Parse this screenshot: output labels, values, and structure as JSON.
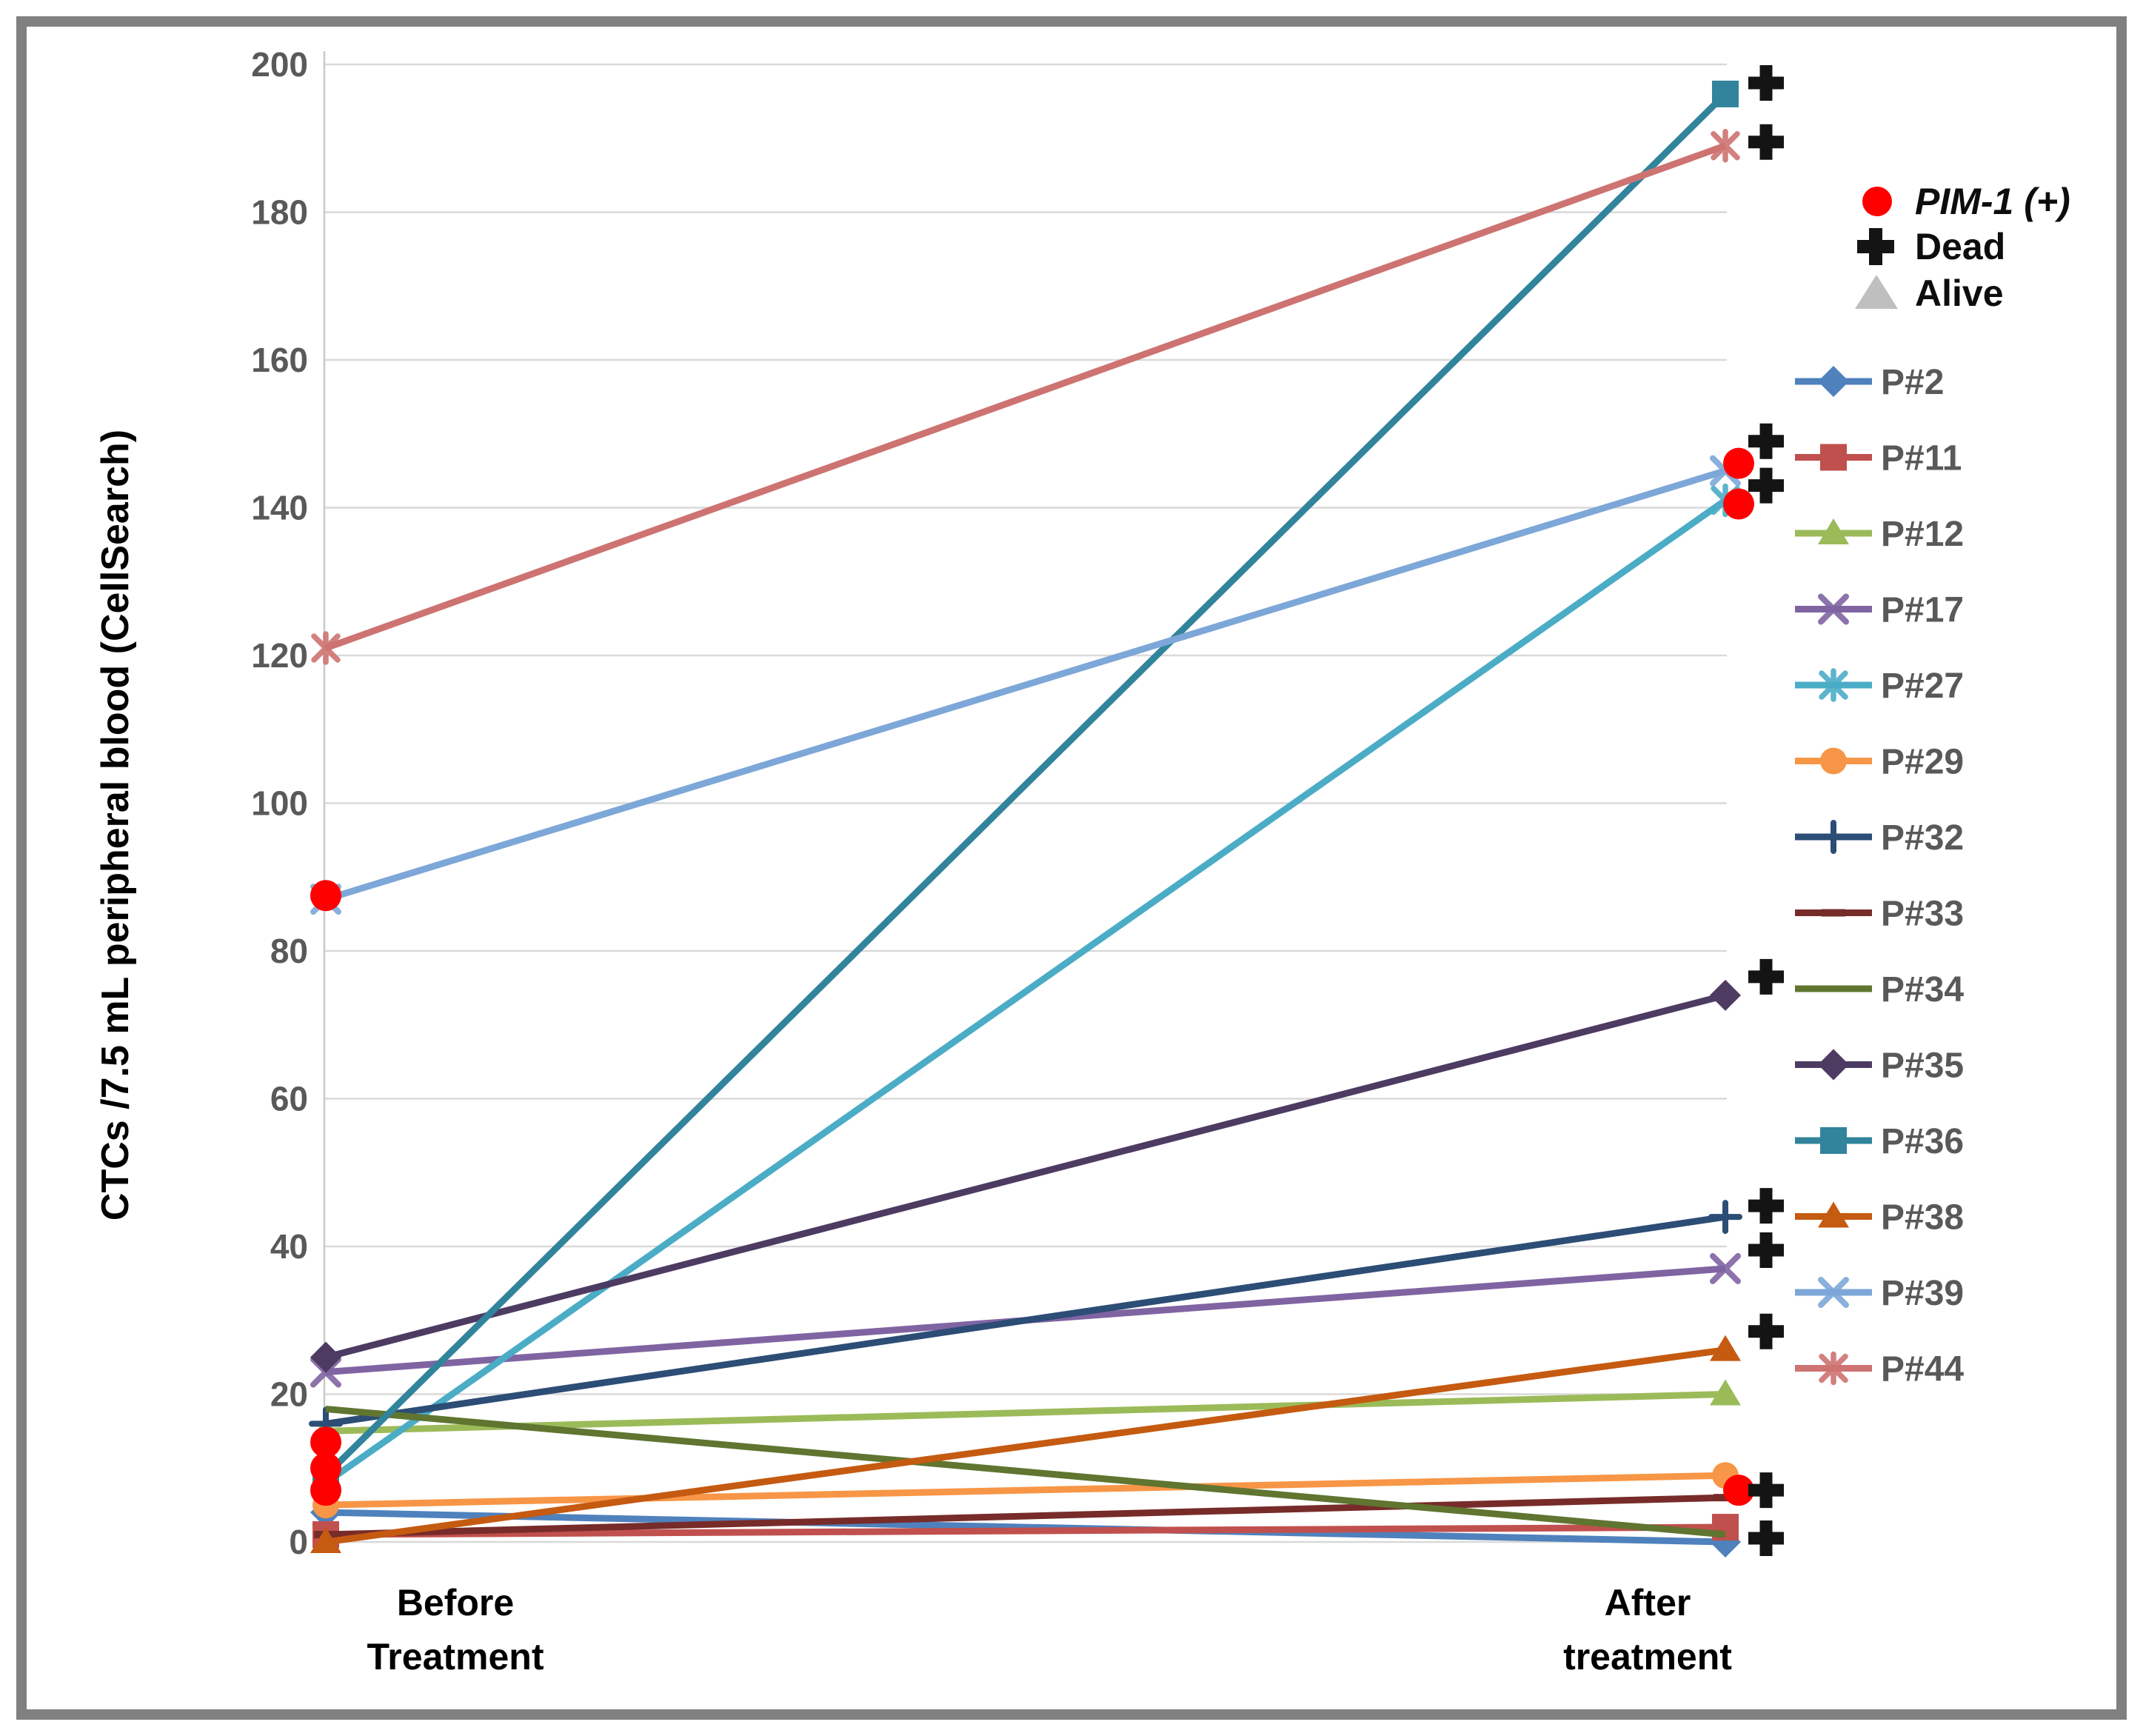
{
  "figure": {
    "y_axis_title": "CTCs /7.5 mL peripheral blood (CellSearch)",
    "x_labels": [
      {
        "line1": "Before",
        "line2": "Treatment"
      },
      {
        "line1": "After",
        "line2": "treatment"
      }
    ],
    "status_legend": [
      {
        "label": "PIM-1 (+)",
        "symbol": "red-circle",
        "color": "#FF0000",
        "italic": true
      },
      {
        "label": "Dead",
        "symbol": "black-plus",
        "color": "#141414",
        "italic": false
      },
      {
        "label": "Alive",
        "symbol": "gray-triangle",
        "color": "#BFBFBF",
        "italic": false
      }
    ]
  },
  "chart_data": {
    "type": "line",
    "title": "",
    "categories": [
      "Before Treatment",
      "After treatment"
    ],
    "xlabel": "",
    "ylabel": "CTCs /7.5 mL peripheral blood (CellSearch)",
    "ylim": [
      0,
      200
    ],
    "yticks": [
      0,
      20,
      40,
      60,
      80,
      100,
      120,
      140,
      160,
      180,
      200
    ],
    "grid": true,
    "legend_position": "right",
    "series": [
      {
        "name": "P#2",
        "color": "#4F81BD",
        "marker": "diamond",
        "values": [
          4,
          0
        ],
        "status": "dead",
        "pim1_before": false,
        "pim1_after": false
      },
      {
        "name": "P#11",
        "color": "#C0504D",
        "marker": "square",
        "values": [
          1,
          2
        ],
        "status": "alive",
        "pim1_before": false,
        "pim1_after": false
      },
      {
        "name": "P#12",
        "color": "#9BBB59",
        "marker": "triangle",
        "values": [
          15,
          20
        ],
        "status": "alive",
        "pim1_before": false,
        "pim1_after": false
      },
      {
        "name": "P#17",
        "color": "#8064A2",
        "marker": "x",
        "values": [
          23,
          37
        ],
        "status": "dead",
        "pim1_before": false,
        "pim1_after": false
      },
      {
        "name": "P#27",
        "color": "#4BACC6",
        "marker": "asterisk",
        "values": [
          8,
          141
        ],
        "status": "dead",
        "pim1_before": false,
        "pim1_after": true
      },
      {
        "name": "P#29",
        "color": "#F79646",
        "marker": "circle",
        "values": [
          5,
          9
        ],
        "status": "alive",
        "pim1_before": false,
        "pim1_after": false
      },
      {
        "name": "P#32",
        "color": "#2C4D75",
        "marker": "plus",
        "values": [
          16,
          44
        ],
        "status": "dead",
        "pim1_before": false,
        "pim1_after": false
      },
      {
        "name": "P#33",
        "color": "#772C2A",
        "marker": "dash",
        "values": [
          1,
          6
        ],
        "status": "dead",
        "pim1_before": false,
        "pim1_after": true
      },
      {
        "name": "P#34",
        "color": "#5F7530",
        "marker": "none",
        "values": [
          18,
          1
        ],
        "status": "alive",
        "pim1_before": false,
        "pim1_after": false
      },
      {
        "name": "P#35",
        "color": "#4D3B62",
        "marker": "diamond",
        "values": [
          25,
          74
        ],
        "status": "dead",
        "pim1_before": false,
        "pim1_after": false
      },
      {
        "name": "P#36",
        "color": "#31849B",
        "marker": "square",
        "values": [
          9,
          196
        ],
        "status": "dead",
        "pim1_before": false,
        "pim1_after": false
      },
      {
        "name": "P#38",
        "color": "#C55A11",
        "marker": "triangle",
        "values": [
          0,
          26
        ],
        "status": "dead",
        "pim1_before": false,
        "pim1_after": false
      },
      {
        "name": "P#39",
        "color": "#7DA7D8",
        "marker": "x",
        "values": [
          87,
          145
        ],
        "status": "dead",
        "pim1_before": true,
        "pim1_after": true
      },
      {
        "name": "P#44",
        "color": "#CD7371",
        "marker": "asterisk",
        "values": [
          121,
          189
        ],
        "status": "dead",
        "pim1_before": false,
        "pim1_after": false
      }
    ],
    "pim1_marker_values": {
      "before": [
        87.5,
        13.5,
        10,
        7
      ],
      "after": [
        146,
        140.5,
        7
      ]
    },
    "dead_marker_values_after": [
      197.5,
      189.5,
      149,
      143,
      76.5,
      45.5,
      39.5,
      28.5,
      7,
      0.5
    ]
  }
}
